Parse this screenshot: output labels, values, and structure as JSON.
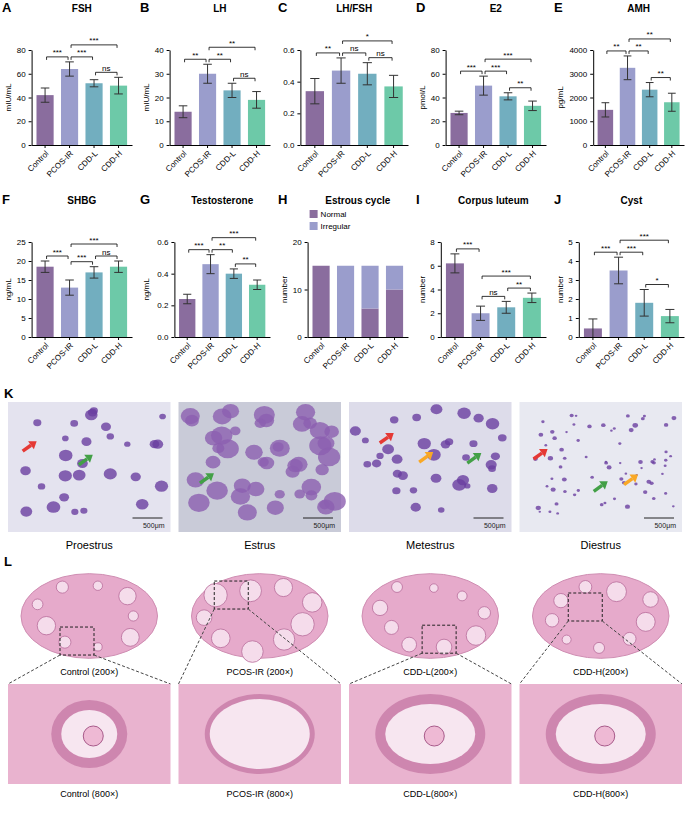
{
  "chart_data": [
    {
      "panel": "A",
      "type": "bar",
      "title": "FSH",
      "y_label": "mIU/mL",
      "categories": [
        "Control",
        "PCOS-IR",
        "CDD-L",
        "CDD-H"
      ],
      "values": [
        42,
        64,
        52,
        50
      ],
      "errors": [
        6,
        6,
        3,
        7
      ],
      "colors": [
        "#8a6d9e",
        "#9a9dcc",
        "#72aebf",
        "#6dc9a8"
      ],
      "ylim": [
        0,
        80
      ],
      "yticks": [
        0,
        20,
        40,
        60,
        80
      ],
      "significance": [
        {
          "between": [
            "Control",
            "PCOS-IR"
          ],
          "label": "***"
        },
        {
          "between": [
            "PCOS-IR",
            "CDD-H"
          ],
          "label": "***"
        },
        {
          "between": [
            "PCOS-IR",
            "CDD-L"
          ],
          "label": "***"
        },
        {
          "between": [
            "CDD-L",
            "CDD-H"
          ],
          "label": "ns"
        }
      ]
    },
    {
      "panel": "B",
      "type": "bar",
      "title": "LH",
      "y_label": "mIU/mL",
      "categories": [
        "Control",
        "PCOS-IR",
        "CDD-L",
        "CDD-H"
      ],
      "values": [
        14,
        30,
        23,
        19
      ],
      "errors": [
        2.5,
        4,
        3,
        3.5
      ],
      "colors": [
        "#8a6d9e",
        "#9a9dcc",
        "#72aebf",
        "#6dc9a8"
      ],
      "ylim": [
        0,
        40
      ],
      "yticks": [
        0,
        10,
        20,
        30,
        40
      ],
      "significance": [
        {
          "between": [
            "Control",
            "PCOS-IR"
          ],
          "label": "**"
        },
        {
          "between": [
            "PCOS-IR",
            "CDD-H"
          ],
          "label": "**"
        },
        {
          "between": [
            "PCOS-IR",
            "CDD-L"
          ],
          "label": "**"
        },
        {
          "between": [
            "CDD-L",
            "CDD-H"
          ],
          "label": "ns"
        }
      ]
    },
    {
      "panel": "C",
      "type": "bar",
      "title": "LH/FSH",
      "categories": [
        "Control",
        "PCOS-IR",
        "CDD-L",
        "CDD-H"
      ],
      "values": [
        0.34,
        0.47,
        0.45,
        0.37
      ],
      "errors": [
        0.08,
        0.08,
        0.07,
        0.07
      ],
      "colors": [
        "#8a6d9e",
        "#9a9dcc",
        "#72aebf",
        "#6dc9a8"
      ],
      "ylim": [
        0,
        0.6
      ],
      "yticks": [
        {
          "value": 0,
          "label": "0.0"
        },
        0.2,
        0.4,
        0.6
      ],
      "significance": [
        {
          "between": [
            "Control",
            "PCOS-IR"
          ],
          "label": "**"
        },
        {
          "between": [
            "PCOS-IR",
            "CDD-H"
          ],
          "label": "*"
        },
        {
          "between": [
            "PCOS-IR",
            "CDD-L"
          ],
          "label": "ns"
        },
        {
          "between": [
            "CDD-L",
            "CDD-H"
          ],
          "label": "ns"
        }
      ]
    },
    {
      "panel": "D",
      "type": "bar",
      "title": "E2",
      "y_label": "pmol/L",
      "categories": [
        "Control",
        "PCOS-IR",
        "CDD-L",
        "CDD-H"
      ],
      "values": [
        27,
        50,
        41,
        33
      ],
      "errors": [
        1.5,
        8,
        3,
        4
      ],
      "colors": [
        "#8a6d9e",
        "#9a9dcc",
        "#72aebf",
        "#6dc9a8"
      ],
      "ylim": [
        0,
        80
      ],
      "yticks": [
        0,
        20,
        40,
        60,
        80
      ],
      "significance": [
        {
          "between": [
            "Control",
            "PCOS-IR"
          ],
          "label": "***"
        },
        {
          "between": [
            "PCOS-IR",
            "CDD-H"
          ],
          "label": "***"
        },
        {
          "between": [
            "PCOS-IR",
            "CDD-L"
          ],
          "label": "***"
        },
        {
          "between": [
            "CDD-L",
            "CDD-H"
          ],
          "label": "**"
        }
      ]
    },
    {
      "panel": "E",
      "type": "bar",
      "title": "AMH",
      "y_label": "pg/mL",
      "categories": [
        "Control",
        "PCOS-IR",
        "CDD-L",
        "CDD-H"
      ],
      "values": [
        1480,
        3250,
        2330,
        1800
      ],
      "errors": [
        300,
        500,
        300,
        380
      ],
      "colors": [
        "#8a6d9e",
        "#9a9dcc",
        "#72aebf",
        "#6dc9a8"
      ],
      "ylim": [
        0,
        4000
      ],
      "yticks": [
        0,
        1000,
        2000,
        3000,
        4000
      ],
      "significance": [
        {
          "between": [
            "Control",
            "PCOS-IR"
          ],
          "label": "**"
        },
        {
          "between": [
            "PCOS-IR",
            "CDD-H"
          ],
          "label": "**"
        },
        {
          "between": [
            "PCOS-IR",
            "CDD-L"
          ],
          "label": "**"
        },
        {
          "between": [
            "CDD-L",
            "CDD-H"
          ],
          "label": "**"
        }
      ]
    },
    {
      "panel": "F",
      "type": "bar",
      "title": "SHBG",
      "y_label": "ng/mL",
      "categories": [
        "Control",
        "PCOS-IR",
        "CDD-L",
        "CDD-H"
      ],
      "values": [
        18.5,
        13,
        17,
        18.5
      ],
      "errors": [
        1.5,
        2,
        1.5,
        1.5
      ],
      "colors": [
        "#8a6d9e",
        "#9a9dcc",
        "#72aebf",
        "#6dc9a8"
      ],
      "ylim": [
        0,
        25
      ],
      "yticks": [
        0,
        5,
        10,
        15,
        20,
        25
      ],
      "significance": [
        {
          "between": [
            "Control",
            "PCOS-IR"
          ],
          "label": "***"
        },
        {
          "between": [
            "PCOS-IR",
            "CDD-H"
          ],
          "label": "***"
        },
        {
          "between": [
            "PCOS-IR",
            "CDD-L"
          ],
          "label": "***"
        },
        {
          "between": [
            "CDD-L",
            "CDD-H"
          ],
          "label": "ns"
        }
      ]
    },
    {
      "panel": "G",
      "type": "bar",
      "title": "Testosterone",
      "y_label": "ng/mL",
      "categories": [
        "Control",
        "PCOS-IR",
        "CDD-L",
        "CDD-H"
      ],
      "values": [
        0.24,
        0.46,
        0.4,
        0.33
      ],
      "errors": [
        0.03,
        0.06,
        0.03,
        0.03
      ],
      "colors": [
        "#8a6d9e",
        "#9a9dcc",
        "#72aebf",
        "#6dc9a8"
      ],
      "ylim": [
        0,
        0.6
      ],
      "yticks": [
        {
          "value": 0,
          "label": "0.0"
        },
        0.2,
        0.4,
        0.6
      ],
      "significance": [
        {
          "between": [
            "Control",
            "PCOS-IR"
          ],
          "label": "***"
        },
        {
          "between": [
            "PCOS-IR",
            "CDD-H"
          ],
          "label": "***"
        },
        {
          "between": [
            "PCOS-IR",
            "CDD-L"
          ],
          "label": "**"
        },
        {
          "between": [
            "CDD-L",
            "CDD-H"
          ],
          "label": "**"
        }
      ]
    },
    {
      "panel": "H",
      "type": "bar",
      "stacked": true,
      "title": "Estrous cycle",
      "y_label": "number",
      "legend": "upper left",
      "categories": [
        "Control",
        "PCOS-IR",
        "CDD-L",
        "CDD-H"
      ],
      "series": [
        {
          "name": "Normal",
          "color": "#8a6d9e",
          "values": [
            15,
            0,
            6,
            10
          ]
        },
        {
          "name": "Irregular",
          "color": "#9a9dcc",
          "values": [
            0,
            15,
            9,
            5
          ]
        }
      ],
      "ylim": [
        0,
        20
      ],
      "yticks": [
        0,
        10,
        20
      ]
    },
    {
      "panel": "I",
      "type": "bar",
      "title": "Corpus luteum",
      "y_label": "number",
      "categories": [
        "Control",
        "PCOS-IR",
        "CDD-L",
        "CDD-H"
      ],
      "values": [
        6.2,
        2,
        2.5,
        3.3
      ],
      "errors": [
        0.8,
        0.6,
        0.5,
        0.4
      ],
      "colors": [
        "#8a6d9e",
        "#9a9dcc",
        "#72aebf",
        "#6dc9a8"
      ],
      "ylim": [
        0,
        8
      ],
      "yticks": [
        0,
        2,
        4,
        6,
        8
      ],
      "significance": [
        {
          "between": [
            "Control",
            "PCOS-IR"
          ],
          "label": "***"
        },
        {
          "between": [
            "PCOS-IR",
            "CDD-H"
          ],
          "label": "***"
        },
        {
          "between": [
            "PCOS-IR",
            "CDD-L"
          ],
          "label": "ns"
        },
        {
          "between": [
            "CDD-L",
            "CDD-H"
          ],
          "label": "**"
        }
      ]
    },
    {
      "panel": "J",
      "type": "bar",
      "title": "Cyst",
      "y_label": "number",
      "categories": [
        "Control",
        "PCOS-IR",
        "CDD-L",
        "CDD-H"
      ],
      "values": [
        0.45,
        3.5,
        1.8,
        1.1
      ],
      "errors": [
        0.5,
        0.7,
        0.7,
        0.35
      ],
      "colors": [
        "#8a6d9e",
        "#9a9dcc",
        "#72aebf",
        "#6dc9a8"
      ],
      "ylim": [
        0,
        5
      ],
      "yticks": [
        0,
        1,
        2,
        3,
        4,
        5
      ],
      "significance": [
        {
          "between": [
            "Control",
            "PCOS-IR"
          ],
          "label": "***"
        },
        {
          "between": [
            "PCOS-IR",
            "CDD-H"
          ],
          "label": "***"
        },
        {
          "between": [
            "PCOS-IR",
            "CDD-L"
          ],
          "label": "***"
        },
        {
          "between": [
            "CDD-L",
            "CDD-H"
          ],
          "label": "*"
        }
      ]
    }
  ],
  "image_panels": [
    {
      "panel": "K",
      "captions": [
        "Proestrus",
        "Estrus",
        "Metestrus",
        "Diestrus"
      ],
      "scale_label": "500μm"
    },
    {
      "panel": "L",
      "captions": [
        "Control (200×)",
        "PCOS-IR (200×)",
        "CDD-L(200×)",
        "CDD-H(200×)"
      ],
      "zoom_captions": [
        "Control (800×)",
        "PCOS-IR (800×)",
        "CDD-L(800×)",
        "CDD-H(800×)"
      ]
    }
  ]
}
